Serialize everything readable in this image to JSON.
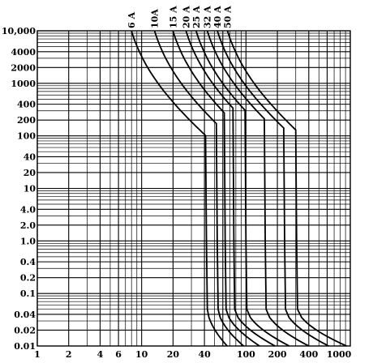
{
  "chart_data": {
    "type": "line",
    "title": "",
    "xlabel": "",
    "ylabel": "",
    "x_scale": "log",
    "y_scale": "log",
    "xlim": [
      1,
      1000
    ],
    "ylim": [
      0.01,
      10000
    ],
    "grid": true,
    "x_tick_labels": [
      {
        "value": 1,
        "label": "1"
      },
      {
        "value": 2,
        "label": "2"
      },
      {
        "value": 4,
        "label": "4"
      },
      {
        "value": 6,
        "label": "6"
      },
      {
        "value": 10,
        "label": "10"
      },
      {
        "value": 20,
        "label": "20"
      },
      {
        "value": 40,
        "label": "40"
      },
      {
        "value": 100,
        "label": "100"
      },
      {
        "value": 200,
        "label": "200"
      },
      {
        "value": 400,
        "label": "400"
      },
      {
        "value": 1000,
        "label": "1000"
      }
    ],
    "y_tick_labels": [
      {
        "value": 10000,
        "label": "10,000"
      },
      {
        "value": 4000,
        "label": "4000"
      },
      {
        "value": 2000,
        "label": "2000"
      },
      {
        "value": 1000,
        "label": "1000"
      },
      {
        "value": 400,
        "label": "400"
      },
      {
        "value": 200,
        "label": "200"
      },
      {
        "value": 100,
        "label": "100"
      },
      {
        "value": 40,
        "label": "40"
      },
      {
        "value": 20,
        "label": "20"
      },
      {
        "value": 10,
        "label": "10"
      },
      {
        "value": 4,
        "label": "4.0"
      },
      {
        "value": 2,
        "label": "2.0"
      },
      {
        "value": 1,
        "label": "1.0"
      },
      {
        "value": 0.4,
        "label": "0.4"
      },
      {
        "value": 0.2,
        "label": "0.2"
      },
      {
        "value": 0.1,
        "label": "0.1"
      },
      {
        "value": 0.04,
        "label": "0.04"
      },
      {
        "value": 0.02,
        "label": "0.02"
      },
      {
        "value": 0.01,
        "label": "0.01"
      }
    ],
    "series": [
      {
        "name": "6 A",
        "rating": 6,
        "drop_x": 41,
        "end_x": 66
      },
      {
        "name": "10A",
        "rating": 10,
        "drop_x": 52,
        "end_x": 95
      },
      {
        "name": "15 A",
        "rating": 15,
        "drop_x": 62,
        "end_x": 135
      },
      {
        "name": "20 A",
        "rating": 20,
        "drop_x": 75,
        "end_x": 190
      },
      {
        "name": "25 A",
        "rating": 25,
        "drop_x": 98,
        "end_x": 260
      },
      {
        "name": "32 A",
        "rating": 32,
        "drop_x": 150,
        "end_x": 400
      },
      {
        "name": "40 A",
        "rating": 40,
        "drop_x": 230,
        "end_x": 620
      },
      {
        "name": "50 A",
        "rating": 50,
        "drop_x": 300,
        "end_x": 920
      }
    ]
  }
}
